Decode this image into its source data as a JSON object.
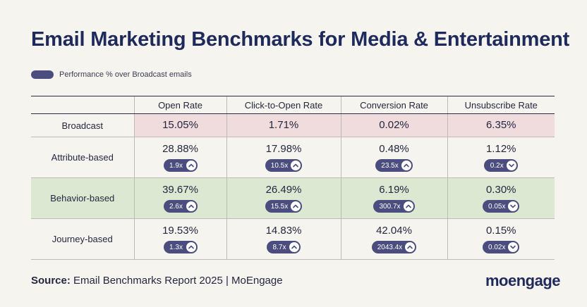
{
  "title": "Email Marketing Benchmarks for Media & Entertainment",
  "legend": {
    "label": "Performance % over Broadcast emails",
    "color": "#4b4d7e"
  },
  "colors": {
    "broadcast_bg": "#f1dcdd",
    "highlight_bg": "#dde8d3",
    "pill": "#4b4d7e",
    "title": "#1f2a5c"
  },
  "chart_data": {
    "type": "table",
    "title": "Email Marketing Benchmarks for Media & Entertainment",
    "columns": [
      "Open Rate",
      "Click-to-Open Rate",
      "Conversion Rate",
      "Unsubscribe Rate"
    ],
    "rows": [
      {
        "label": "Broadcast",
        "style": "broadcast",
        "cells": [
          {
            "value": "15.05%"
          },
          {
            "value": "1.71%"
          },
          {
            "value": "0.02%"
          },
          {
            "value": "6.35%"
          }
        ]
      },
      {
        "label": "Attribute-based",
        "style": "normal",
        "cells": [
          {
            "value": "28.88%",
            "multiplier": "1.9x",
            "direction": "up"
          },
          {
            "value": "17.98%",
            "multiplier": "10.5x",
            "direction": "up"
          },
          {
            "value": "0.48%",
            "multiplier": "23.5x",
            "direction": "up"
          },
          {
            "value": "1.12%",
            "multiplier": "0.2x",
            "direction": "down"
          }
        ]
      },
      {
        "label": "Behavior-based",
        "style": "highlight",
        "cells": [
          {
            "value": "39.67%",
            "multiplier": "2.6x",
            "direction": "up"
          },
          {
            "value": "26.49%",
            "multiplier": "15.5x",
            "direction": "up"
          },
          {
            "value": "6.19%",
            "multiplier": "300.7x",
            "direction": "up"
          },
          {
            "value": "0.30%",
            "multiplier": "0.05x",
            "direction": "down"
          }
        ]
      },
      {
        "label": "Journey-based",
        "style": "normal",
        "cells": [
          {
            "value": "19.53%",
            "multiplier": "1.3x",
            "direction": "up"
          },
          {
            "value": "14.83%",
            "multiplier": "8.7x",
            "direction": "up"
          },
          {
            "value": "42.04%",
            "multiplier": "2043.4x",
            "direction": "up"
          },
          {
            "value": "0.15%",
            "multiplier": "0.02x",
            "direction": "down"
          }
        ]
      }
    ]
  },
  "source": {
    "label": "Source:",
    "text": "Email Benchmarks Report 2025 | MoEngage"
  },
  "logo": {
    "text": "moengage"
  }
}
